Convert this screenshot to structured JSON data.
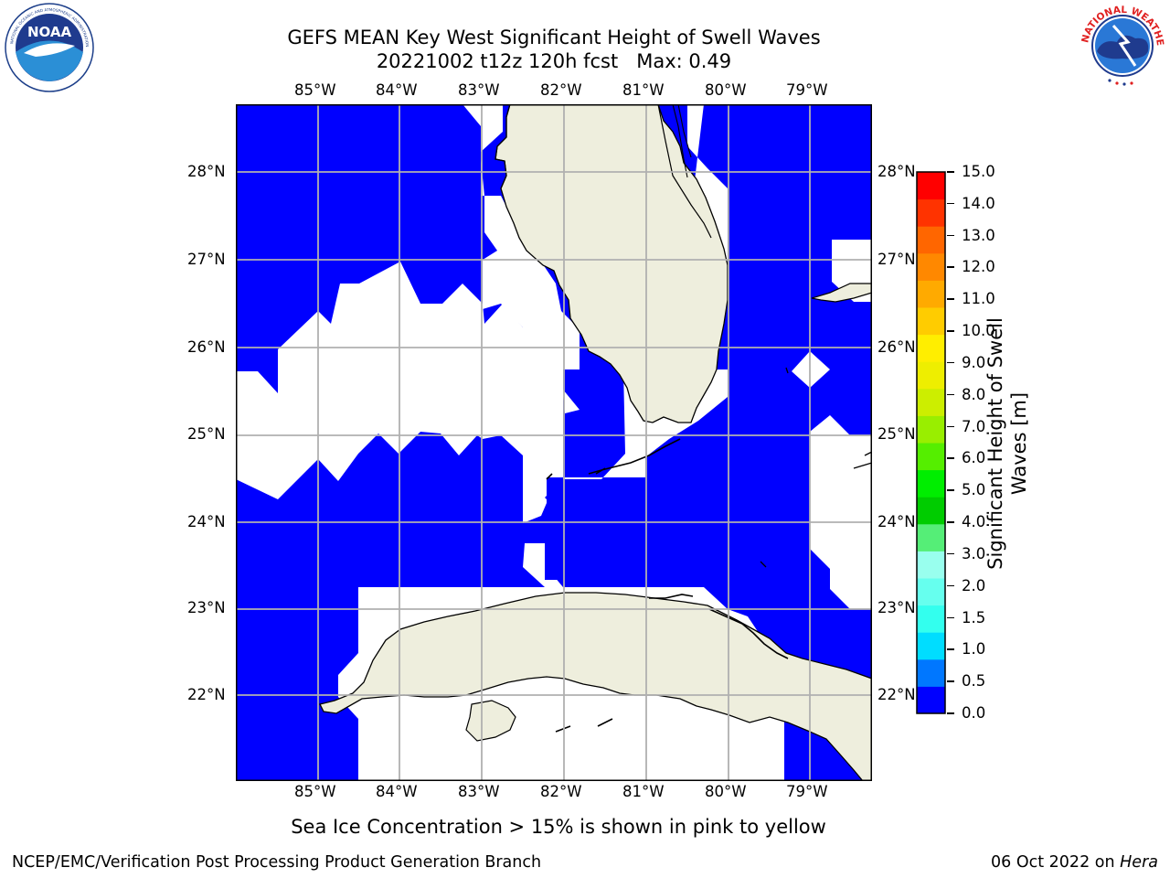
{
  "title": {
    "line1": "GEFS MEAN Key West Significant Height of Swell Waves",
    "line2": "20221002 t12z 120h fcst   Max: 0.49"
  },
  "logos": {
    "left": {
      "icon": "noaa-logo",
      "text": "NOAA",
      "ring_text": "NATIONAL OCEANIC AND ATMOSPHERIC ADMINISTRATION · U.S. DEPARTMENT OF COMMERCE"
    },
    "right": {
      "icon": "nws-logo",
      "ring_text": "NATIONAL WEATHER SERVICE"
    }
  },
  "map": {
    "lon_labels": [
      "85°W",
      "84°W",
      "83°W",
      "82°W",
      "81°W",
      "80°W",
      "79°W"
    ],
    "lat_labels": [
      "28°N",
      "27°N",
      "26°N",
      "25°N",
      "24°N",
      "23°N",
      "22°N"
    ],
    "colors": {
      "water": "#0000ff",
      "land": "#eeeedd",
      "nodata": "#ffffff",
      "grid": "#b0b0b0"
    }
  },
  "colorbar": {
    "label": "Significant Height of Swell Waves [m]",
    "ticks": [
      "15.0",
      "14.0",
      "13.0",
      "12.0",
      "11.0",
      "10.0",
      "9.0",
      "8.0",
      "7.0",
      "6.0",
      "5.0",
      "4.0",
      "3.0",
      "2.0",
      "1.5",
      "1.0",
      "0.5",
      "0.0"
    ],
    "colors": [
      "#0000ff",
      "#0077ff",
      "#00ddff",
      "#33ffee",
      "#66ffee",
      "#99ffee",
      "#55ee77",
      "#00cc00",
      "#00ee00",
      "#55ee00",
      "#99ee00",
      "#ccee00",
      "#eeee00",
      "#ffee00",
      "#ffcc00",
      "#ffaa00",
      "#ff8800",
      "#ff6600",
      "#ff3300",
      "#ff0000"
    ]
  },
  "caption": "Sea Ice Concentration > 15% is shown in pink to yellow",
  "footer": {
    "left": "NCEP/EMC/Verification Post Processing Product Generation Branch",
    "right_prefix": "06 Oct 2022 on ",
    "right_emph": "Hera"
  }
}
